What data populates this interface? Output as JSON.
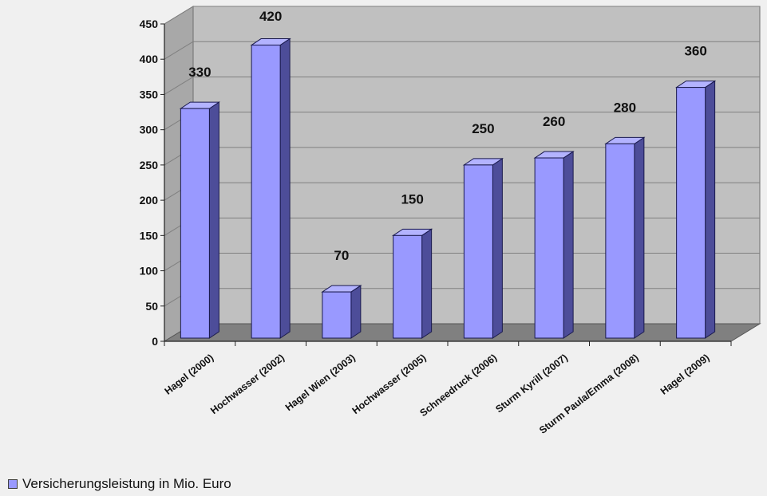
{
  "chart_data": {
    "type": "bar",
    "categories": [
      "Hagel (2000)",
      "Hochwasser (2002)",
      "Hagel Wien (2003)",
      "Hochwasser (2005)",
      "Schneedruck (2006)",
      "Sturm Kyrill (2007)",
      "Sturm Paula/Emma (2008)",
      "Hagel (2009)"
    ],
    "series": [
      {
        "name": "Versicherungsleistung in Mio. Euro",
        "values": [
          330,
          420,
          70,
          150,
          250,
          260,
          280,
          360
        ]
      }
    ],
    "data_labels": [
      "330",
      "420",
      "70",
      "150",
      "250",
      "260",
      "280",
      "360"
    ],
    "y_ticks": [
      0,
      50,
      100,
      150,
      200,
      250,
      300,
      350,
      400,
      450
    ],
    "ylim": [
      0,
      450
    ],
    "title": "",
    "xlabel": "",
    "ylabel": "",
    "grid": true,
    "legend_position": "bottom-left",
    "three_d": true,
    "colors": {
      "bar_front": "#9999ff",
      "bar_top": "#b3b3ff",
      "bar_side": "#4d4d99",
      "bar_edge": "#1a1a4d",
      "wall": "#c0c0c0",
      "floor": "#808080",
      "grid": "#808080",
      "background": "#f0f0f0"
    }
  },
  "legend": {
    "label": "Versicherungsleistung in Mio. Euro"
  }
}
